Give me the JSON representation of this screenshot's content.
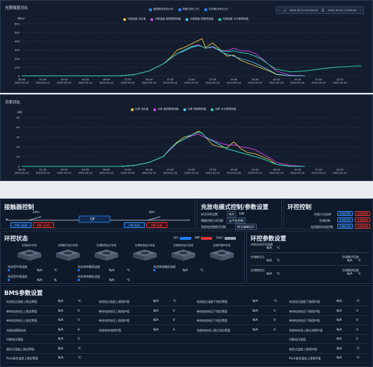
{
  "chart1": {
    "title": "光照强度对比",
    "ylabel": "W/m²",
    "ylim": [
      0,
      600
    ],
    "yticks": [
      "0",
      "100",
      "200",
      "300",
      "400",
      "500",
      "600"
    ],
    "legend_top": [
      {
        "label": "超短期未来四小时",
        "color": "#2f7ff5"
      },
      {
        "label": "短期(未来三天)",
        "color": "#2f7ff5"
      },
      {
        "label": "中长期(未来七天)",
        "color": "#2f7ff5"
      }
    ],
    "legend_series": [
      {
        "label": "光照强度 实际值",
        "color": "#f5c542"
      },
      {
        "label": "光照强度 超短期预测值",
        "color": "#d946ef"
      },
      {
        "label": "光照强度 短期预测值",
        "color": "#4fc3f7"
      },
      {
        "label": "光照强度 中长期预测值",
        "color": "#2dd4a8"
      }
    ],
    "date_from": "2022-02-22 00:00:00",
    "date_sep": "至",
    "date_to": "2022-02-22 23:59:59"
  },
  "chart2": {
    "title": "功率对比",
    "ylabel": "kW",
    "ylim": [
      0,
      50
    ],
    "yticks": [
      "0",
      "10",
      "20",
      "30",
      "40",
      "50"
    ],
    "legend_series": [
      {
        "label": "功率 实际值",
        "color": "#f5c542"
      },
      {
        "label": "功率 超短期预测值",
        "color": "#d946ef"
      },
      {
        "label": "功率 短期预测值",
        "color": "#4fc3f7"
      },
      {
        "label": "功率 中长期预测值",
        "color": "#2dd4a8"
      }
    ]
  },
  "x_times": [
    "00:00",
    "01:30",
    "03:00",
    "04:30",
    "06:00",
    "07:30",
    "09:00",
    "10:30",
    "12:00",
    "13:30",
    "15:00",
    "16:30",
    "18:00",
    "19:30",
    "21:00",
    "22:30"
  ],
  "x_date": "2022-02-22",
  "chart_data": [
    {
      "type": "line",
      "title": "光照强度对比",
      "ylabel": "W/m²",
      "ylim": [
        0,
        600
      ],
      "x_hours": [
        0,
        6,
        7,
        8,
        9,
        10,
        10.5,
        11,
        11.5,
        12,
        12.5,
        12.75,
        13,
        13.5,
        14,
        14.5,
        15,
        15.5,
        16,
        16.5,
        17,
        17.5,
        18,
        19,
        20,
        21,
        22,
        23,
        24
      ],
      "series": [
        {
          "name": "光照强度 实际值",
          "color": "#f5c542",
          "values": [
            5,
            5,
            5,
            20,
            60,
            140,
            210,
            300,
            330,
            370,
            410,
            430,
            330,
            380,
            310,
            230,
            240,
            180,
            150,
            120,
            90,
            60,
            20,
            5,
            5,
            null,
            null,
            null,
            null
          ]
        },
        {
          "name": "光照强度 超短期预测值",
          "color": "#d946ef",
          "values": [
            5,
            5,
            5,
            20,
            60,
            140,
            200,
            260,
            300,
            340,
            360,
            340,
            320,
            330,
            300,
            290,
            320,
            290,
            290,
            260,
            200,
            130,
            60,
            10,
            5,
            null,
            null,
            null,
            null
          ]
        },
        {
          "name": "光照强度 短期预测值",
          "color": "#4fc3f7",
          "values": [
            5,
            5,
            5,
            20,
            60,
            140,
            200,
            260,
            290,
            330,
            350,
            340,
            320,
            340,
            290,
            250,
            230,
            200,
            180,
            150,
            110,
            70,
            25,
            5,
            5,
            null,
            null,
            null,
            null
          ]
        },
        {
          "name": "光照强度 中长期预测值",
          "color": "#2dd4a8",
          "values": [
            5,
            5,
            5,
            20,
            60,
            140,
            200,
            260,
            300,
            340,
            350,
            340,
            320,
            340,
            300,
            280,
            290,
            270,
            260,
            230,
            190,
            130,
            80,
            50,
            60,
            80,
            100,
            110,
            120
          ]
        }
      ]
    },
    {
      "type": "line",
      "title": "功率对比",
      "ylabel": "kW",
      "ylim": [
        0,
        50
      ],
      "x_hours": [
        0,
        6,
        7,
        8,
        9,
        10,
        10.5,
        11,
        11.5,
        12,
        12.5,
        12.75,
        13,
        13.5,
        14,
        14.5,
        15,
        15.5,
        16,
        16.5,
        17,
        17.5,
        18,
        19,
        20,
        21,
        22,
        23,
        24
      ],
      "series": [
        {
          "name": "功率 实际值",
          "color": "#f5c542",
          "values": [
            0,
            0,
            0,
            1,
            4,
            10,
            18,
            25,
            30,
            32,
            36,
            34,
            30,
            22,
            20,
            19,
            25,
            18,
            14,
            13,
            10,
            7,
            2,
            0,
            0,
            null,
            null,
            null,
            null
          ]
        },
        {
          "name": "功率 超短期预测值",
          "color": "#d946ef",
          "values": [
            0,
            0,
            0,
            1,
            4,
            10,
            17,
            24,
            28,
            31,
            33,
            31,
            29,
            27,
            24,
            22,
            22,
            20,
            19,
            17,
            13,
            9,
            4,
            1,
            0,
            null,
            null,
            null,
            null
          ]
        },
        {
          "name": "功率 短期预测值",
          "color": "#4fc3f7",
          "values": [
            0,
            0,
            0,
            1,
            4,
            10,
            18,
            24,
            28,
            32,
            35,
            34,
            30,
            26,
            22,
            18,
            16,
            14,
            12,
            10,
            8,
            5,
            2,
            0,
            0,
            null,
            null,
            null,
            null
          ]
        },
        {
          "name": "功率 中长期预测值",
          "color": "#2dd4a8",
          "values": [
            0,
            0,
            0,
            1,
            4,
            10,
            18,
            24,
            28,
            32,
            35,
            34,
            30,
            26,
            22,
            18,
            16,
            14,
            12,
            10,
            8,
            5,
            2,
            0,
            0,
            null,
            null,
            null,
            null
          ]
        }
      ]
    }
  ],
  "contactor": {
    "title": "接触器控制",
    "km_plus": "KM+",
    "km_minus": "KM-",
    "qf": "QF",
    "plus_sign": "+",
    "minus_sign": "-",
    "km_plus_close": "KM+合闸",
    "km_plus_open": "KM+分闸",
    "km_minus_close": "KM-合闸",
    "km_minus_open": "KM-分闸"
  },
  "charge": {
    "title": "充放电模式控制/参数设置",
    "row1_label": "有功功率设置",
    "row1_value": "N/A",
    "row1_unit": "kW",
    "row2_label": "储能控制方式切换",
    "row2_value": "云平台控制",
    "row3_label": "充放电控制模式切换",
    "row3_value": "削谷填峰运行"
  },
  "env_ctrl": {
    "title": "环控控制",
    "rows": [
      {
        "label": "控制方式选择",
        "a": "本地控制",
        "b": "远程控制"
      },
      {
        "label": "空调控制",
        "a": "空调开机",
        "b": "空调关机"
      },
      {
        "label": "电池舱排风扇控制",
        "a": "风扇开机",
        "b": "风扇关机"
      }
    ]
  },
  "env_status": {
    "title": "环控状态",
    "legend": [
      {
        "label": "运行",
        "color": "#1f7fff"
      },
      {
        "label": "故障",
        "color": "#e23434"
      },
      {
        "label": "未运行",
        "color": "#9aa5b3"
      }
    ],
    "units": [
      "空调运行状态",
      "空调制冷运行状态",
      "空调制热运行状态",
      "空调除湿运行状态",
      "空调送风运行状态",
      "空调内循环状态"
    ],
    "fields": [
      {
        "label": "电池室环境温度",
        "value": "N/A",
        "unit": "℃"
      },
      {
        "label": "电池单体最高温度",
        "value": "N/A",
        "unit": "℃"
      },
      {
        "label": "电池单体最低温度",
        "value": "N/A",
        "unit": "℃"
      },
      {
        "label": "电池室环境湿度",
        "value": "N/A",
        "unit": "%"
      },
      {
        "label": "电池单体最低温度",
        "value": "N/A",
        "unit": "℃"
      }
    ]
  },
  "env_params": {
    "title": "环控参数设置",
    "r1_label": "风扇自动开机温度",
    "r1_value": "N/A",
    "r1_unit": "℃",
    "r2_label": "空调制冷点",
    "r2_value": "N/A",
    "r2_unit": "℃",
    "r2_right_label": "空调制冷回差",
    "r2_right_value": "N/A",
    "r2_right_unit": "℃",
    "r3_label": "空调制热点",
    "r3_value": "N/A",
    "r3_unit": "℃",
    "r3_right_label": "空调制热回差",
    "r3_right_value": "N/A",
    "r3_right_unit": "℃"
  },
  "bms": {
    "title": "BMS参数设置",
    "rows": [
      [
        {
          "label": "电池组过温度上限告警值",
          "value": "N/A",
          "unit": "℃"
        },
        {
          "label": "电池组过温度上限保护值",
          "value": "N/A",
          "unit": "℃"
        },
        {
          "label": "电池组过温度下限告警值",
          "value": "N/A",
          "unit": "℃"
        },
        {
          "label": "电池组过温度下限保护值",
          "value": "N/A",
          "unit": "℃"
        }
      ],
      [
        {
          "label": "单体电池电压上限告警值",
          "value": "N/A",
          "unit": "V"
        },
        {
          "label": "单体电池电压上限保护值",
          "value": "N/A",
          "unit": "V"
        },
        {
          "label": "单体电池电压下限告警值",
          "value": "N/A",
          "unit": "V"
        },
        {
          "label": "单体电池电压下限保护值",
          "value": "N/A",
          "unit": "V"
        }
      ],
      [
        {
          "label": "单体电池电压上限告警值",
          "value": "N/A",
          "unit": "V"
        },
        {
          "label": "单体电池电压上限保护值",
          "value": "N/A",
          "unit": "V"
        },
        {
          "label": "单体电池电压下限告警值",
          "value": "N/A",
          "unit": "V"
        },
        {
          "label": "单体电池电压下限保护值",
          "value": "N/A",
          "unit": "V"
        }
      ],
      [
        {
          "label": "充放电阈值电流",
          "value": "N/A",
          "unit": "A"
        },
        {
          "label": "充放电电流保护值",
          "value": "N/A",
          "unit": "A"
        },
        {
          "label": "充放电电流上限过流告警值",
          "value": "N/A",
          "unit": "A"
        },
        {
          "label": "充放电电流上限过流保护值",
          "value": "N/A",
          "unit": "A"
        }
      ],
      [
        {
          "label": "均衡电压阈值",
          "value": "N/A",
          "unit": "V"
        },
        {
          "label": "",
          "value": "",
          "unit": ""
        },
        {
          "label": "",
          "value": "",
          "unit": ""
        },
        {
          "label": "均衡电压差值",
          "value": "N/A",
          "unit": "V"
        }
      ],
      [
        {
          "label": "极柱过温度上限告警值",
          "value": "N/A",
          "unit": "℃"
        },
        {
          "label": "",
          "value": "",
          "unit": ""
        },
        {
          "label": "",
          "value": "",
          "unit": ""
        },
        {
          "label": "极柱过温度上限保护值",
          "value": "N/A",
          "unit": "℃"
        }
      ],
      [
        {
          "label": "Pack极柱温度上限告警值",
          "value": "N/A",
          "unit": "℃"
        },
        {
          "label": "",
          "value": "",
          "unit": ""
        },
        {
          "label": "",
          "value": "",
          "unit": ""
        },
        {
          "label": "Pack极柱温度上限保护值",
          "value": "N/A",
          "unit": "℃"
        }
      ]
    ]
  }
}
